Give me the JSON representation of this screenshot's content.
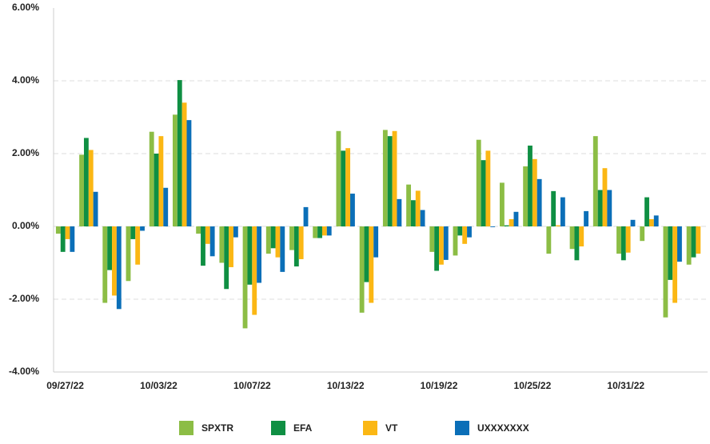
{
  "chart_data": {
    "type": "bar",
    "categories": [
      "09/27/22",
      null,
      null,
      null,
      "10/03/22",
      null,
      null,
      null,
      "10/07/22",
      null,
      null,
      null,
      "10/13/22",
      null,
      null,
      null,
      "10/19/22",
      null,
      null,
      null,
      "10/25/22",
      null,
      null,
      null,
      "10/31/22",
      null,
      null,
      null
    ],
    "series": [
      {
        "name": "SPXTR",
        "color": "#8cbd45",
        "values": [
          -0.2,
          1.97,
          -2.1,
          -1.5,
          2.6,
          3.07,
          -0.2,
          -1.0,
          -2.8,
          -0.75,
          -0.65,
          -0.32,
          2.62,
          -2.37,
          2.65,
          1.15,
          -0.7,
          -0.8,
          2.38,
          1.2,
          1.65,
          -0.75,
          -0.62,
          2.48,
          -0.75,
          -0.4,
          -2.5,
          -1.05
        ]
      },
      {
        "name": "EFA",
        "color": "#0f8f43",
        "values": [
          -0.7,
          2.43,
          -1.2,
          -0.35,
          2.0,
          4.02,
          -1.08,
          -1.72,
          -1.6,
          -0.6,
          -1.1,
          -0.32,
          2.08,
          -1.53,
          2.48,
          0.72,
          -1.22,
          -0.25,
          1.82,
          0.03,
          2.22,
          0.97,
          -0.93,
          1.0,
          -0.93,
          0.8,
          -1.47,
          -0.85
        ]
      },
      {
        "name": "VT",
        "color": "#fbb714",
        "values": [
          -0.35,
          2.1,
          -1.9,
          -1.05,
          2.48,
          3.4,
          -0.48,
          -1.12,
          -2.43,
          -0.85,
          -0.9,
          -0.25,
          2.15,
          -2.1,
          2.62,
          0.98,
          -1.05,
          -0.48,
          2.08,
          0.2,
          1.85,
          0.03,
          -0.55,
          1.6,
          -0.72,
          0.2,
          -2.1,
          -0.75
        ]
      },
      {
        "name": "UXXXXXXX",
        "color": "#0b6fb8",
        "values": [
          -0.7,
          0.95,
          -2.27,
          -0.12,
          1.06,
          2.92,
          -0.82,
          -0.3,
          -1.55,
          -1.25,
          0.53,
          -0.25,
          0.9,
          -0.85,
          0.75,
          0.45,
          -0.92,
          -0.3,
          -0.02,
          0.4,
          1.3,
          0.8,
          0.42,
          1.0,
          0.18,
          0.3,
          -0.97,
          null
        ]
      }
    ],
    "ylim": [
      -4,
      6
    ],
    "yticks": [
      {
        "value": -4,
        "label": "-4.00%"
      },
      {
        "value": -2,
        "label": "-2.00%"
      },
      {
        "value": 0,
        "label": "0.00%"
      },
      {
        "value": 2,
        "label": "2.00%"
      },
      {
        "value": 4,
        "label": "4.00%"
      },
      {
        "value": 6,
        "label": "6.00%"
      }
    ],
    "grid": true,
    "legend": "bottom"
  }
}
